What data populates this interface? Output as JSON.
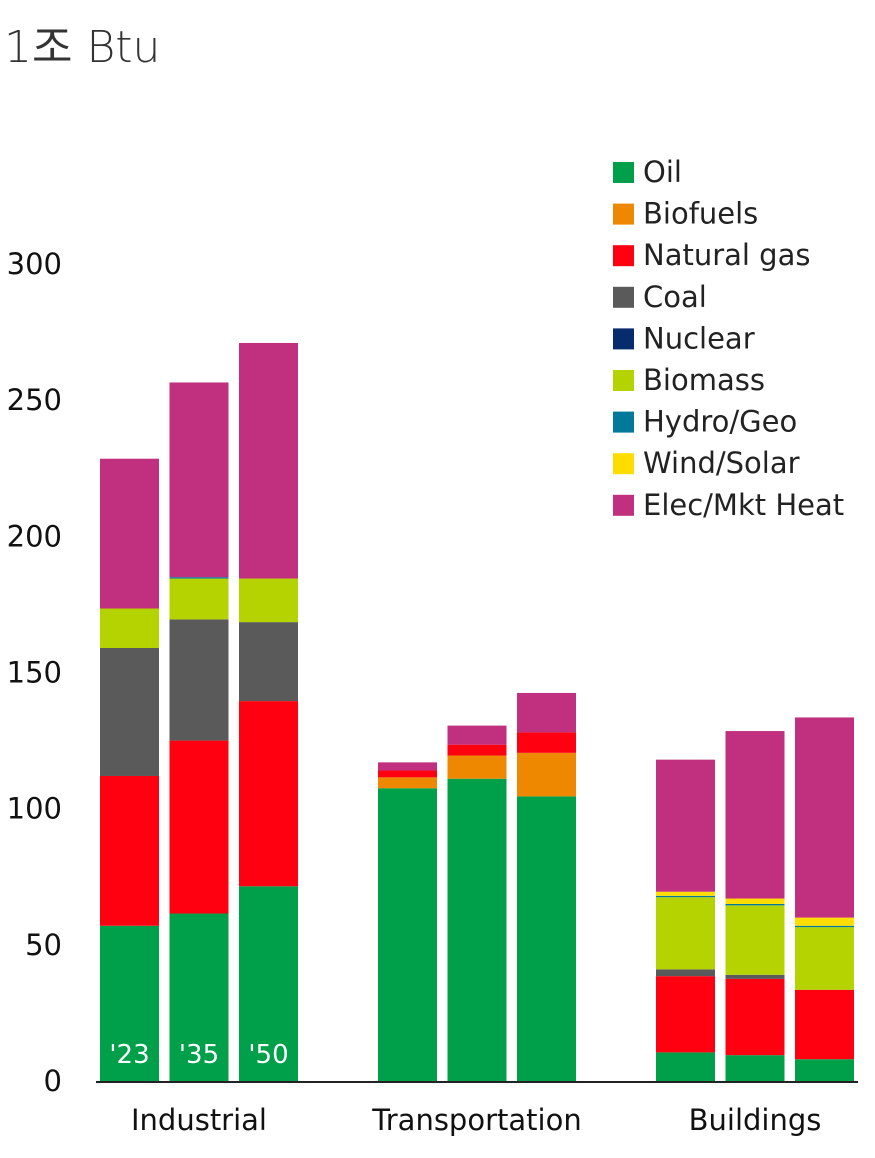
{
  "chart_data": {
    "type": "bar",
    "stacked": true,
    "unit_label": "1조 Btu",
    "groups": [
      "Industrial",
      "Transportation",
      "Buildings"
    ],
    "years": [
      "'23",
      "'35",
      "'50"
    ],
    "ylim": [
      0,
      300
    ],
    "yticks": [
      "0",
      "50",
      "100",
      "150",
      "200",
      "250",
      "300"
    ],
    "grid": false,
    "legend_position": "top-right",
    "series": [
      {
        "name": "Oil",
        "color": "#00a04a",
        "values": [
          57,
          61.5,
          71.5,
          107.5,
          111,
          104.5,
          10.5,
          9.5,
          8
        ]
      },
      {
        "name": "Biofuels",
        "color": "#ee8800",
        "values": [
          0,
          0,
          0,
          4,
          8.5,
          16,
          0,
          0,
          0
        ]
      },
      {
        "name": "Natural gas",
        "color": "#ff0010",
        "values": [
          55,
          63.5,
          68,
          2.5,
          4,
          7.5,
          28,
          28,
          25.5
        ]
      },
      {
        "name": "Coal",
        "color": "#5a5a5a",
        "values": [
          47,
          44.5,
          29,
          0,
          0,
          0,
          2.5,
          1.5,
          0
        ]
      },
      {
        "name": "Nuclear",
        "color": "#062c6e",
        "values": [
          0,
          0,
          0,
          0,
          0,
          0,
          0,
          0,
          0
        ]
      },
      {
        "name": "Biomass",
        "color": "#b5d300",
        "values": [
          14.5,
          15,
          16,
          0,
          0,
          0,
          26.5,
          25.5,
          23
        ]
      },
      {
        "name": "Hydro/Geo",
        "color": "#00799a",
        "values": [
          0,
          0.5,
          0,
          0,
          0,
          0,
          0.5,
          0.5,
          0.5
        ]
      },
      {
        "name": "Wind/Solar",
        "color": "#ffdd00",
        "values": [
          0,
          0,
          0,
          0,
          0,
          0,
          1.5,
          2,
          3
        ]
      },
      {
        "name": "Elec/Mkt Heat",
        "color": "#c0307e",
        "values": [
          55,
          71.5,
          86.5,
          3,
          7,
          14.5,
          48.5,
          61.5,
          73.5
        ]
      }
    ]
  }
}
